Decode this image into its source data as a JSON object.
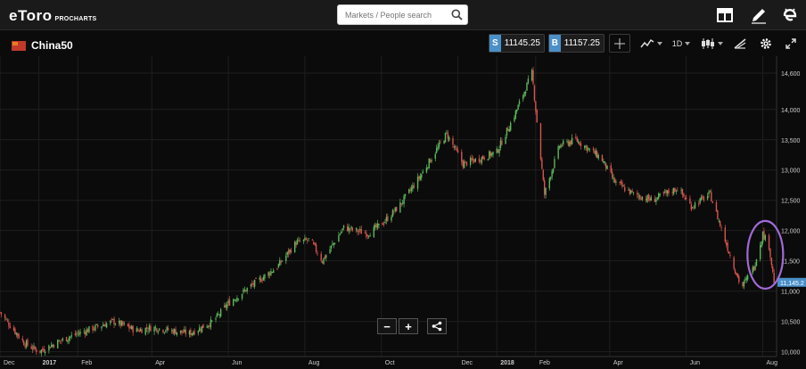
{
  "brand": {
    "logo": "eToro",
    "sub": "PROCHARTS"
  },
  "search": {
    "placeholder": "Markets / People search"
  },
  "top_icons": [
    "layout-icon",
    "pencil-icon",
    "etoro-e-icon"
  ],
  "instrument": {
    "name": "China50",
    "flag_icon": "china-flag-icon"
  },
  "sell": {
    "tag": "S",
    "price": "11145.25"
  },
  "buy": {
    "tag": "B",
    "price": "11157.25"
  },
  "toolbar": {
    "timeframe": "1D",
    "icons": [
      "crosshair-icon",
      "indicators-icon",
      "timeframe-select",
      "candles-icon",
      "drawing-icon",
      "gear-icon",
      "fullscreen-icon"
    ]
  },
  "zoom": {
    "out": "−",
    "in": "+"
  },
  "colors": {
    "up": "#5cb85c",
    "down": "#d9534f",
    "accent": "#4a90c9",
    "highlight_ellipse": "#a06ad8"
  },
  "chart_data": {
    "type": "candlestick",
    "instrument": "China50",
    "timeframe": "1D",
    "current_price_label": "11,145.2",
    "y_ticks": [
      "14,600",
      "14,000",
      "13,500",
      "13,000",
      "12,500",
      "12,000",
      "11,500",
      "11,000",
      "10,500",
      "10,000"
    ],
    "y_tick_values": [
      14600,
      14000,
      13500,
      13000,
      12500,
      12000,
      11500,
      11000,
      10500,
      10000
    ],
    "ylim": [
      9920,
      14880
    ],
    "x_ticks": [
      "Dec",
      "2017",
      "Feb",
      "Apr",
      "Jun",
      "Aug",
      "Oct",
      "Dec",
      "2018",
      "Feb",
      "Apr",
      "Jun",
      "Aug"
    ],
    "x_tick_dates": [
      "2016-12-01",
      "2017-01-01",
      "2017-02-01",
      "2017-04-01",
      "2017-06-01",
      "2017-08-01",
      "2017-10-01",
      "2017-12-01",
      "2018-01-01",
      "2018-02-01",
      "2018-04-01",
      "2018-06-01",
      "2018-08-01"
    ],
    "x_range": [
      "2016-12-01",
      "2018-08-12"
    ],
    "grid": true,
    "annotation": "highlight ellipse around latest candles",
    "close_path": [
      [
        "2016-12-01",
        10650
      ],
      [
        "2016-12-20",
        10150
      ],
      [
        "2017-01-01",
        10000
      ],
      [
        "2017-01-15",
        10150
      ],
      [
        "2017-02-01",
        10300
      ],
      [
        "2017-03-01",
        10500
      ],
      [
        "2017-03-20",
        10350
      ],
      [
        "2017-04-01",
        10400
      ],
      [
        "2017-05-01",
        10300
      ],
      [
        "2017-05-20",
        10500
      ],
      [
        "2017-06-01",
        10800
      ],
      [
        "2017-06-20",
        11100
      ],
      [
        "2017-07-10",
        11400
      ],
      [
        "2017-07-25",
        11800
      ],
      [
        "2017-08-05",
        11850
      ],
      [
        "2017-08-15",
        11500
      ],
      [
        "2017-09-01",
        12050
      ],
      [
        "2017-09-20",
        11950
      ],
      [
        "2017-10-01",
        12100
      ],
      [
        "2017-10-15",
        12400
      ],
      [
        "2017-11-01",
        12900
      ],
      [
        "2017-11-22",
        13600
      ],
      [
        "2017-12-05",
        13100
      ],
      [
        "2017-12-20",
        13200
      ],
      [
        "2018-01-01",
        13300
      ],
      [
        "2018-01-15",
        13900
      ],
      [
        "2018-01-29",
        14600
      ],
      [
        "2018-02-08",
        12600
      ],
      [
        "2018-02-20",
        13400
      ],
      [
        "2018-03-05",
        13500
      ],
      [
        "2018-03-25",
        13200
      ],
      [
        "2018-04-05",
        12800
      ],
      [
        "2018-04-20",
        12600
      ],
      [
        "2018-05-05",
        12500
      ],
      [
        "2018-05-25",
        12700
      ],
      [
        "2018-06-05",
        12400
      ],
      [
        "2018-06-20",
        12600
      ],
      [
        "2018-07-05",
        11650
      ],
      [
        "2018-07-15",
        11050
      ],
      [
        "2018-07-25",
        11400
      ],
      [
        "2018-08-01",
        11950
      ],
      [
        "2018-08-06",
        11750
      ],
      [
        "2018-08-10",
        11145
      ]
    ]
  }
}
